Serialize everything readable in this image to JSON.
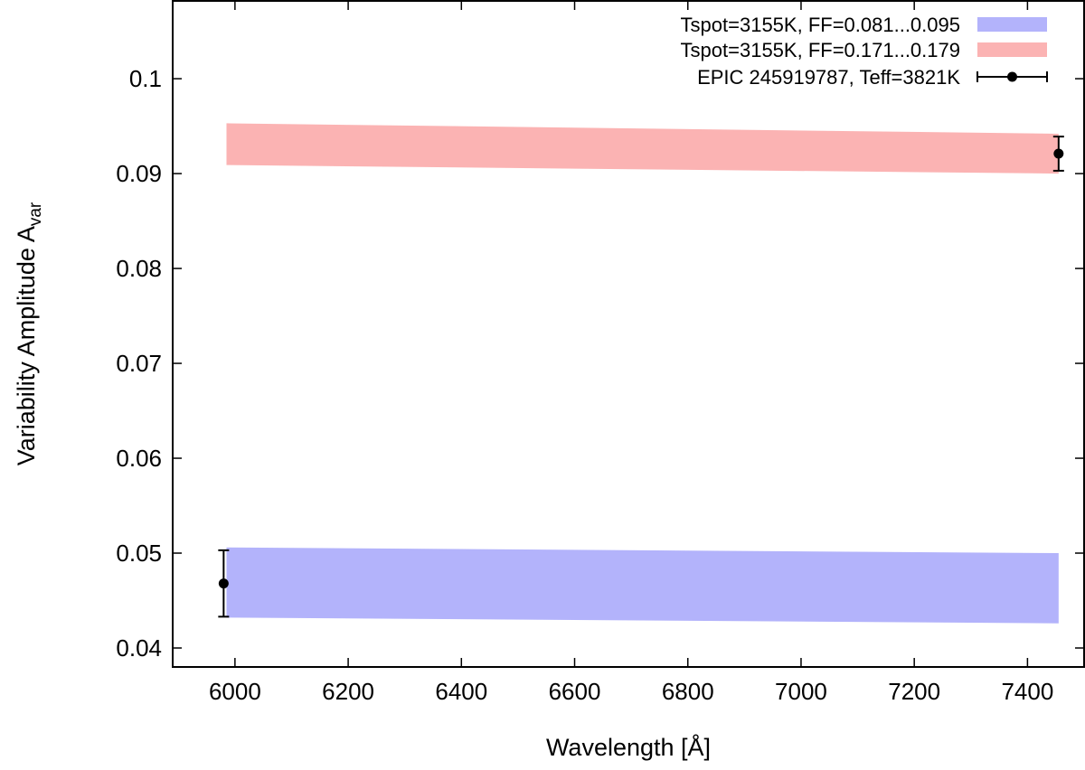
{
  "chart_data": {
    "type": "area",
    "title": "",
    "xlabel": "Wavelength [Å]",
    "ylabel": {
      "main": "Variability Amplitude A",
      "subscript": "var"
    },
    "xlim": [
      5890,
      7500
    ],
    "ylim": [
      0.038,
      0.1082
    ],
    "xticks": [
      6000,
      6200,
      6400,
      6600,
      6800,
      7000,
      7200,
      7400
    ],
    "yticks": [
      0.04,
      0.05,
      0.06,
      0.07,
      0.08,
      0.09,
      0.1
    ],
    "ytick_labels": [
      "0.04",
      "0.05",
      "0.06",
      "0.07",
      "0.08",
      "0.09",
      "0.1"
    ],
    "grid": false,
    "legend_position": "top-right",
    "bands": [
      {
        "name": "Tspot=3155K, FF=0.081...0.095",
        "color": "#b3b3fb",
        "x": [
          5985,
          7455
        ],
        "upper": [
          0.0506,
          0.05
        ],
        "lower": [
          0.0432,
          0.0426
        ]
      },
      {
        "name": "Tspot=3155K, FF=0.171...0.179",
        "color": "#fbb3b3",
        "x": [
          5985,
          7455
        ],
        "upper": [
          0.0953,
          0.0942
        ],
        "lower": [
          0.0909,
          0.09
        ]
      }
    ],
    "points": {
      "name": "EPIC 245919787, Teff=3821K",
      "color": "#000000",
      "x": [
        5980,
        7455
      ],
      "y": [
        0.0468,
        0.0921
      ],
      "yerr": [
        0.0035,
        0.0018
      ]
    }
  }
}
